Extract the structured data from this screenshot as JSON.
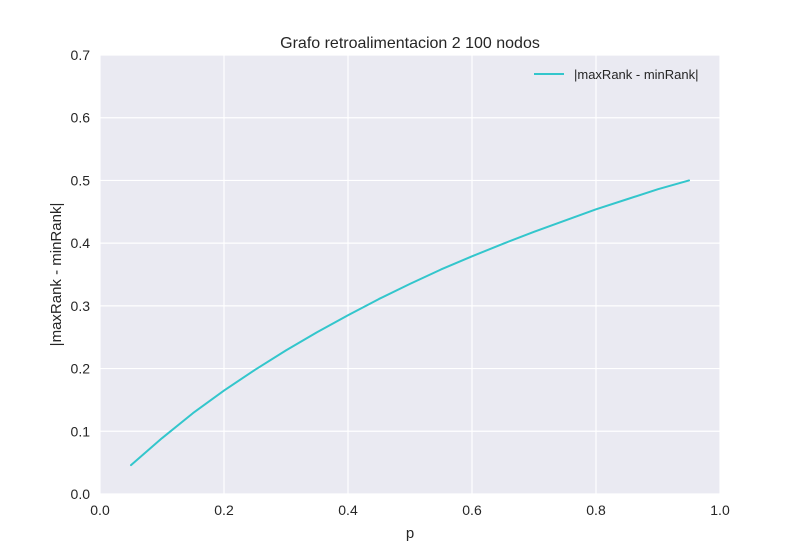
{
  "chart_data": {
    "type": "line",
    "title": "Grafo retroalimentacion 2 100 nodos",
    "xlabel": "p",
    "ylabel": "|maxRank - minRank|",
    "xlim": [
      0.0,
      1.0
    ],
    "ylim": [
      0.0,
      0.7
    ],
    "x_ticks": [
      "0.0",
      "0.2",
      "0.4",
      "0.6",
      "0.8",
      "1.0"
    ],
    "y_ticks": [
      "0.0",
      "0.1",
      "0.2",
      "0.3",
      "0.4",
      "0.5",
      "0.6",
      "0.7"
    ],
    "grid": true,
    "legend_position": "top-right",
    "series": [
      {
        "name": "|maxRank - minRank|",
        "color": "#33c6cc",
        "x": [
          0.05,
          0.1,
          0.15,
          0.2,
          0.25,
          0.3,
          0.35,
          0.4,
          0.45,
          0.5,
          0.55,
          0.6,
          0.65,
          0.7,
          0.75,
          0.8,
          0.85,
          0.9,
          0.95
        ],
        "y": [
          0.046,
          0.089,
          0.129,
          0.165,
          0.198,
          0.229,
          0.258,
          0.285,
          0.311,
          0.335,
          0.358,
          0.379,
          0.399,
          0.418,
          0.436,
          0.454,
          0.47,
          0.486,
          0.5
        ]
      }
    ],
    "colors": {
      "plot_background": "#eaeaf2",
      "grid": "#ffffff",
      "text": "#262626"
    }
  }
}
